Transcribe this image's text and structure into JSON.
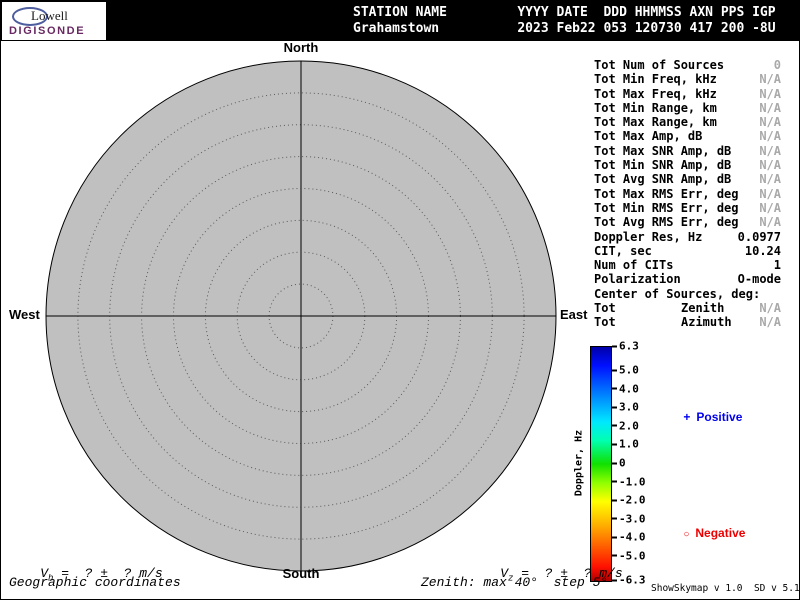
{
  "colors": {
    "header_bg": "#000000",
    "header_fg": "#ffffff",
    "circle_fill": "#c0c0c0",
    "muted_value": "#a9a9a9",
    "positive": "#0000ee",
    "negative": "#ee0000",
    "brand_purple": "#682861"
  },
  "logo": {
    "line1": "Lowell",
    "line2": "DIGISONDE"
  },
  "header": {
    "columns": [
      {
        "label": "STATION NAME",
        "value": "Grahamstown"
      },
      {
        "label": "YYYY DATE",
        "value": "2023 Feb22"
      },
      {
        "label": "DDD",
        "value": "053"
      },
      {
        "label": "HHMMSS",
        "value": "120730"
      },
      {
        "label": "AXN",
        "value": "417"
      },
      {
        "label": "PPS",
        "value": "200"
      },
      {
        "label": "IGP",
        "value": "-8U"
      }
    ]
  },
  "compass": {
    "north": "North",
    "south": "South",
    "west": "West",
    "east": "East"
  },
  "stats": {
    "rows": [
      {
        "label": "Tot Num of Sources",
        "value": "0",
        "muted": true
      },
      {
        "label": "Tot Min Freq, kHz",
        "value": "N/A",
        "muted": true
      },
      {
        "label": "Tot Max Freq, kHz",
        "value": "N/A",
        "muted": true
      },
      {
        "label": "Tot Min Range, km",
        "value": "N/A",
        "muted": true
      },
      {
        "label": "Tot Max Range, km",
        "value": "N/A",
        "muted": true
      },
      {
        "label": "Tot Max Amp, dB",
        "value": "N/A",
        "muted": true
      },
      {
        "label": "Tot Max SNR Amp, dB",
        "value": "N/A",
        "muted": true
      },
      {
        "label": "Tot Min SNR Amp, dB",
        "value": "N/A",
        "muted": true
      },
      {
        "label": "Tot Avg SNR Amp, dB",
        "value": "N/A",
        "muted": true
      },
      {
        "label": "Tot Max RMS Err, deg",
        "value": "N/A",
        "muted": true
      },
      {
        "label": "Tot Min RMS Err, deg",
        "value": "N/A",
        "muted": true
      },
      {
        "label": "Tot Avg RMS Err, deg",
        "value": "N/A",
        "muted": true
      },
      {
        "label": "Doppler Res, Hz",
        "value": "0.0977",
        "muted": false
      },
      {
        "label": "CIT, sec",
        "value": "10.24",
        "muted": false
      },
      {
        "label": "Num of CITs",
        "value": "1",
        "muted": false
      },
      {
        "label": "Polarization",
        "value": "O-mode",
        "muted": false
      },
      {
        "label": "Center of Sources, deg:",
        "value": "",
        "muted": false
      },
      {
        "label": "Tot",
        "label2": "Zenith",
        "value": "N/A",
        "muted": true
      },
      {
        "label": "Tot",
        "label2": "Azimuth",
        "value": "N/A",
        "muted": true
      }
    ]
  },
  "colorbar": {
    "title": "Doppler, Hz",
    "max": 6.3,
    "min": -6.3,
    "ticks": [
      {
        "v": 6.3,
        "label": "6.3"
      },
      {
        "v": 5.0,
        "label": "5.0"
      },
      {
        "v": 4.0,
        "label": "4.0"
      },
      {
        "v": 3.0,
        "label": "3.0"
      },
      {
        "v": 2.0,
        "label": "2.0"
      },
      {
        "v": 1.0,
        "label": "1.0"
      },
      {
        "v": 0,
        "label": "0"
      },
      {
        "v": -1.0,
        "label": "-1.0"
      },
      {
        "v": -2.0,
        "label": "-2.0"
      },
      {
        "v": -3.0,
        "label": "-3.0"
      },
      {
        "v": -4.0,
        "label": "-4.0"
      },
      {
        "v": -5.0,
        "label": "-5.0"
      },
      {
        "v": -6.3,
        "label": "-6.3"
      }
    ],
    "gradient": [
      "#0000a8 0%",
      "#0010ff 8%",
      "#0090ff 22%",
      "#00e8ff 32%",
      "#00ffb0 40%",
      "#10e000 50%",
      "#90ff00 58%",
      "#ffff00 66%",
      "#ffb000 76%",
      "#ff6000 85%",
      "#ff1000 94%",
      "#b00000 100%"
    ]
  },
  "legend": {
    "positive_symbol": "+",
    "positive_label": "Positive",
    "negative_symbol": "○",
    "negative_label": "Negative"
  },
  "footer": {
    "vh_symbol": "V",
    "vh_sub": "h",
    "vh_rest": " =  ? ±  ? m/s",
    "vz_symbol": "V",
    "vz_sub": "z",
    "vz_rest": " =  ? ±  ? m/s",
    "coords_label": "Geographic coordinates",
    "zenith_note": "Zenith: max 40°  step 5°",
    "version": "ShowSkymap v 1.0  SD v 5.1"
  },
  "chart_data": {
    "type": "scatter",
    "projection": "polar-skymap",
    "compass_labels": [
      "North",
      "East",
      "South",
      "West"
    ],
    "zenith_max_deg": 40,
    "zenith_step_deg": 5,
    "num_sources": 0,
    "points": [],
    "colorbar": {
      "label": "Doppler, Hz",
      "min": -6.3,
      "max": 6.3,
      "units": "Hz"
    }
  }
}
